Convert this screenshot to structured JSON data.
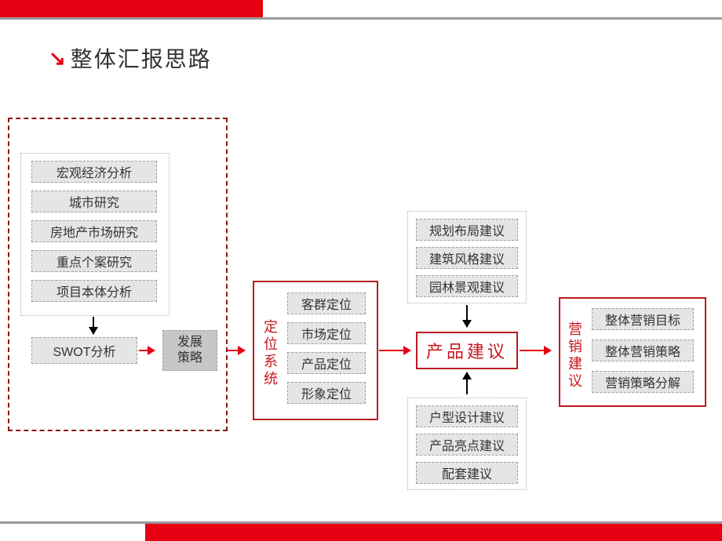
{
  "title": "整体汇报思路",
  "colors": {
    "accent": "#e60012",
    "darkred": "#8b1a1a",
    "boxred": "#b81c22",
    "textred": "#c8161d",
    "gray_bg": "#e5e5e5",
    "gray_border": "#a0a0a0",
    "strip": "#9a9a9a"
  },
  "left_group": {
    "items": [
      "宏观经济分析",
      "城市研究",
      "房地产市场研究",
      "重点个案研究",
      "项目本体分析"
    ],
    "swot": "SWOT分析",
    "strategy": "发展\n策略"
  },
  "positioning": {
    "label": "定位系统",
    "items": [
      "客群定位",
      "市场定位",
      "产品定位",
      "形象定位"
    ]
  },
  "product": {
    "label": "产品建议",
    "top_items": [
      "规划布局建议",
      "建筑风格建议",
      "园林景观建议"
    ],
    "bottom_items": [
      "户型设计建议",
      "产品亮点建议",
      "配套建议"
    ]
  },
  "marketing": {
    "label": "营销建议",
    "items": [
      "整体营销目标",
      "整体营销策略",
      "营销策略分解"
    ]
  }
}
